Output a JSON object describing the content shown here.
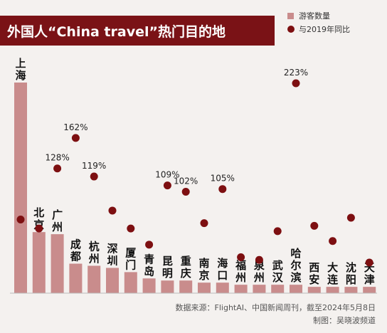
{
  "title": "外国人“China travel”热门目的地",
  "legend": {
    "bar_label": "游客数量",
    "dot_label": "与2019年同比"
  },
  "colors": {
    "title_bg": "#7a1216",
    "bar": "#c98c8c",
    "dot": "#7d0f11",
    "background": "#f4f1ef"
  },
  "source": {
    "line1": "数据来源：FlightAI、中国新闻周刊，截至2024年5月8日",
    "line2": "制图：吴晓波频道"
  },
  "chart_data": {
    "type": "bar",
    "title": "外国人“China travel”热门目的地",
    "categories": [
      "上海",
      "北京",
      "广州",
      "成都",
      "杭州",
      "深圳",
      "厦门",
      "青岛",
      "昆明",
      "重庆",
      "南京",
      "海口",
      "福州",
      "泉州",
      "武汉",
      "哈尔滨",
      "西安",
      "大连",
      "沈阳",
      "天津"
    ],
    "series": [
      {
        "name": "游客数量",
        "values": [
          100,
          29,
          28,
          14,
          13,
          12,
          10,
          7,
          6,
          6,
          5,
          5,
          4,
          4,
          4,
          4,
          3,
          3,
          3,
          3
        ]
      },
      {
        "name": "与2019年同比",
        "values": [
          71,
          61,
          128,
          162,
          119,
          81,
          61,
          43,
          109,
          102,
          67,
          105,
          29,
          26,
          58,
          223,
          64,
          47,
          73,
          23
        ]
      }
    ],
    "point_labels": [
      "",
      "",
      "128%",
      "162%",
      "119%",
      "",
      "",
      "",
      "109%",
      "102%",
      "",
      "105%",
      "",
      "",
      "",
      "223%",
      "",
      "",
      "",
      ""
    ],
    "legend_position": "top-right",
    "grid": false
  }
}
